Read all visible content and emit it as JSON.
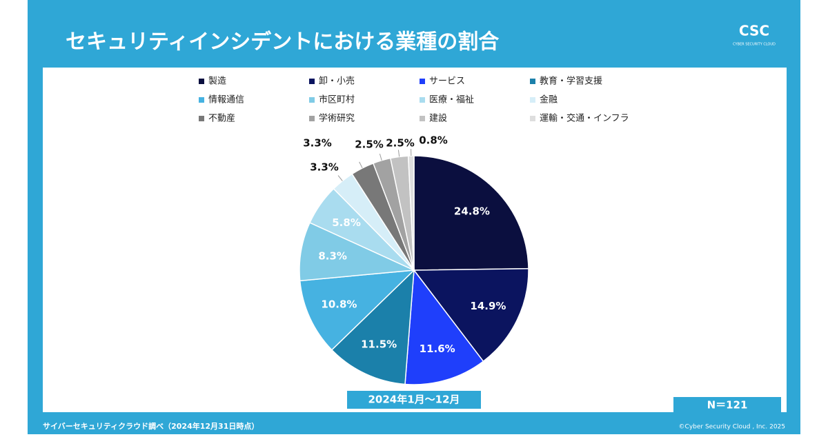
{
  "chart_data": {
    "type": "pie",
    "title": "セキュリティインシデントにおける業種の割合",
    "logo": {
      "mark": "CSC",
      "text": "CYBER SECURITY CLOUD"
    },
    "categories": [
      "製造",
      "卸・小売",
      "サービス",
      "教育・学習支援",
      "情報通信",
      "市区町村",
      "医療・福祉",
      "金融",
      "不動産",
      "学術研究",
      "建設",
      "運輸・交通・インフラ"
    ],
    "values": [
      24.8,
      14.9,
      11.6,
      11.5,
      10.8,
      8.3,
      5.8,
      3.3,
      3.3,
      2.5,
      2.5,
      0.8
    ],
    "value_labels": [
      "24.8%",
      "14.9%",
      "11.6%",
      "11.5%",
      "10.8%",
      "8.3%",
      "5.8%",
      "3.3%",
      "3.3%",
      "2.5%",
      "2.5%",
      "0.8%"
    ],
    "colors": [
      "#0b0f3f",
      "#0b145f",
      "#1f3ffb",
      "#1b80aa",
      "#46b2e1",
      "#80cbe6",
      "#a9dcef",
      "#d6eef8",
      "#787878",
      "#a2a2a2",
      "#c2c2c2",
      "#dedede"
    ],
    "period": "2024年1月〜12月",
    "sample_size": "N＝121",
    "source": "サイバーセキュリティクラウド調べ（2024年12月31日時点）",
    "copyright": "©Cyber Security Cloud , Inc. 2025"
  }
}
